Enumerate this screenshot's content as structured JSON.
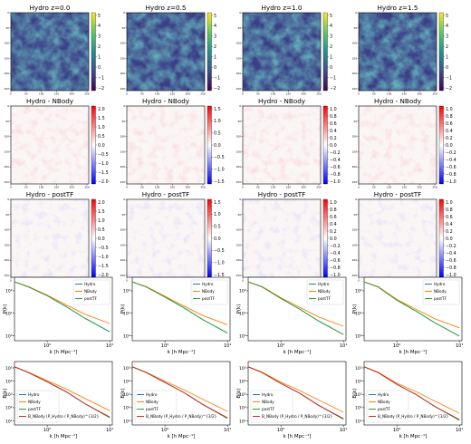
{
  "figure": {
    "columns": [
      {
        "redshift_title": "Hydro z=0.0",
        "map_ticks": [
          "5",
          "4",
          "3",
          "2",
          "1",
          "0",
          "−1",
          "−2"
        ],
        "diff_ticks": [
          "2.0",
          "1.5",
          "1.0",
          "0.5",
          "0.0",
          "−0.5",
          "−1.0",
          "−1.5",
          "−2.0"
        ],
        "post_ticks": [
          "2.0",
          "1.5",
          "1.0",
          "0.5",
          "0.0",
          "−0.5",
          "−1.0",
          "−1.5",
          "−2.0"
        ]
      },
      {
        "redshift_title": "Hydro z=0.5",
        "map_ticks": [
          "5",
          "4",
          "3",
          "2",
          "1",
          "0",
          "−1",
          "−2"
        ],
        "diff_ticks": [
          "1.5",
          "1.0",
          "0.5",
          "0.0",
          "−0.5",
          "−1.0",
          "−1.5"
        ],
        "post_ticks": [
          "1.5",
          "1.0",
          "0.5",
          "0.0",
          "−0.5",
          "−1.0",
          "−1.5"
        ]
      },
      {
        "redshift_title": "Hydro z=1.0",
        "map_ticks": [
          "5",
          "4",
          "3",
          "2",
          "1",
          "0",
          "−1",
          "−2"
        ],
        "diff_ticks": [
          "1.0",
          "0.8",
          "0.6",
          "0.4",
          "0.2",
          "0.0",
          "−0.2",
          "−0.4",
          "−0.6",
          "−0.8",
          "−1.0"
        ],
        "post_ticks": [
          "1.0",
          "0.8",
          "0.6",
          "0.4",
          "0.2",
          "0.0",
          "−0.2",
          "−0.4",
          "−0.6",
          "−0.8",
          "−1.0"
        ]
      },
      {
        "redshift_title": "Hydro z=1.5",
        "map_ticks": [
          "5",
          "4",
          "3",
          "2",
          "1",
          "0",
          "−1",
          "−2"
        ],
        "diff_ticks": [
          "1.0",
          "0.8",
          "0.6",
          "0.4",
          "0.2",
          "0.0",
          "−0.2",
          "−0.4",
          "−0.6",
          "−0.8",
          "−1.0"
        ],
        "post_ticks": [
          "1.0",
          "0.8",
          "0.6",
          "0.4",
          "0.2",
          "0.0",
          "−0.2",
          "−0.4",
          "−0.6",
          "−0.8",
          "−1.0"
        ]
      }
    ],
    "row_titles": {
      "diff": "Hydro - NBody",
      "post": "Hydro - postTF"
    },
    "map_axis_ticks": [
      "0",
      "50",
      "100",
      "150",
      "200",
      "250"
    ],
    "map_yaxis_ticks": [
      "0",
      "50",
      "100",
      "150",
      "200",
      "250"
    ]
  },
  "chart_data": [
    {
      "type": "line",
      "panel": "power spectrum",
      "xlabel": "k [h Mpc⁻¹]",
      "ylabel": "P(k)",
      "xscale": "log",
      "yscale": "log",
      "x": [
        0.3,
        0.5,
        1.0,
        2.0,
        4.0,
        10.0
      ],
      "x_tick_labels": [
        "10⁰",
        "10¹"
      ],
      "y_tick_labels": [
        "10⁰",
        "10¹",
        "10²"
      ],
      "legend": "top-right",
      "series": [
        {
          "name": "Hydro",
          "color": "#1f77b4",
          "values": [
            250,
            150,
            60,
            20,
            6,
            1.5
          ]
        },
        {
          "name": "NBody",
          "color": "#ff7f0e",
          "values": [
            250,
            155,
            65,
            24,
            9,
            3.5
          ]
        },
        {
          "name": "postTF",
          "color": "#2ca02c",
          "values": [
            250,
            150,
            60,
            20,
            6,
            1.5
          ]
        }
      ]
    },
    {
      "type": "line",
      "panel": "bispectrum",
      "xlabel": "k [h Mpc⁻¹]",
      "ylabel": "B(k)",
      "xscale": "log",
      "yscale": "log",
      "x": [
        0.3,
        0.5,
        1.0,
        2.0,
        4.0,
        10.0
      ],
      "x_tick_labels": [
        "10⁰",
        "10¹"
      ],
      "y_tick_labels": [
        "10¹",
        "10²",
        "10³",
        "10⁴",
        "10⁵"
      ],
      "legend": "bottom-left",
      "series": [
        {
          "name": "Hydro",
          "color": "#1f77b4",
          "values": [
            120000,
            45000,
            9000,
            1600,
            200,
            18
          ]
        },
        {
          "name": "NBody",
          "color": "#ff7f0e",
          "values": [
            120000,
            48000,
            11000,
            2600,
            500,
            60
          ]
        },
        {
          "name": "postTF",
          "color": "#2ca02c",
          "values": [
            120000,
            45000,
            9000,
            1600,
            200,
            18
          ]
        },
        {
          "name": "B_NBody (P_Hydro / P_NBody)^{3/2}",
          "color": "#d62728",
          "values": [
            120000,
            45000,
            9000,
            1600,
            200,
            20
          ]
        }
      ]
    }
  ]
}
